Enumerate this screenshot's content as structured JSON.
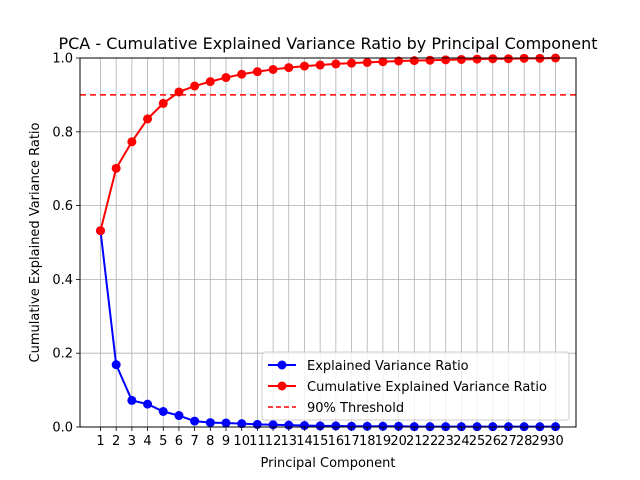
{
  "chart_data": {
    "type": "line",
    "title": "PCA - Cumulative Explained Variance Ratio by Principal Component",
    "xlabel": "Principal Component",
    "ylabel": "Cumulative Explained Variance Ratio",
    "x": [
      1,
      2,
      3,
      4,
      5,
      6,
      7,
      8,
      9,
      10,
      11,
      12,
      13,
      14,
      15,
      16,
      17,
      18,
      19,
      20,
      21,
      22,
      23,
      24,
      25,
      26,
      27,
      28,
      29,
      30
    ],
    "ylim": [
      0,
      1.0
    ],
    "yticks": [
      "0.0",
      "0.2",
      "0.4",
      "0.6",
      "0.8",
      "1.0"
    ],
    "grid": true,
    "legend_position": "lower-right",
    "series": [
      {
        "name": "Explained Variance Ratio",
        "color": "#0000ff",
        "marker": "circle",
        "linestyle": "solid",
        "values": [
          0.532,
          0.169,
          0.072,
          0.062,
          0.042,
          0.031,
          0.016,
          0.012,
          0.011,
          0.009,
          0.007,
          0.006,
          0.005,
          0.004,
          0.003,
          0.003,
          0.002,
          0.002,
          0.002,
          0.002,
          0.001,
          0.001,
          0.001,
          0.001,
          0.001,
          0.001,
          0.001,
          0.001,
          0.001,
          0.001
        ]
      },
      {
        "name": "Cumulative Explained Variance Ratio",
        "color": "#ff0000",
        "marker": "circle",
        "linestyle": "solid",
        "values": [
          0.532,
          0.701,
          0.773,
          0.835,
          0.877,
          0.908,
          0.924,
          0.936,
          0.947,
          0.956,
          0.963,
          0.969,
          0.974,
          0.978,
          0.981,
          0.984,
          0.986,
          0.988,
          0.99,
          0.992,
          0.993,
          0.994,
          0.995,
          0.996,
          0.997,
          0.998,
          0.998,
          0.999,
          0.999,
          1.0
        ]
      }
    ],
    "threshold": {
      "name": "90% Threshold",
      "value": 0.9,
      "color": "#ff0000",
      "linestyle": "dashed"
    }
  }
}
